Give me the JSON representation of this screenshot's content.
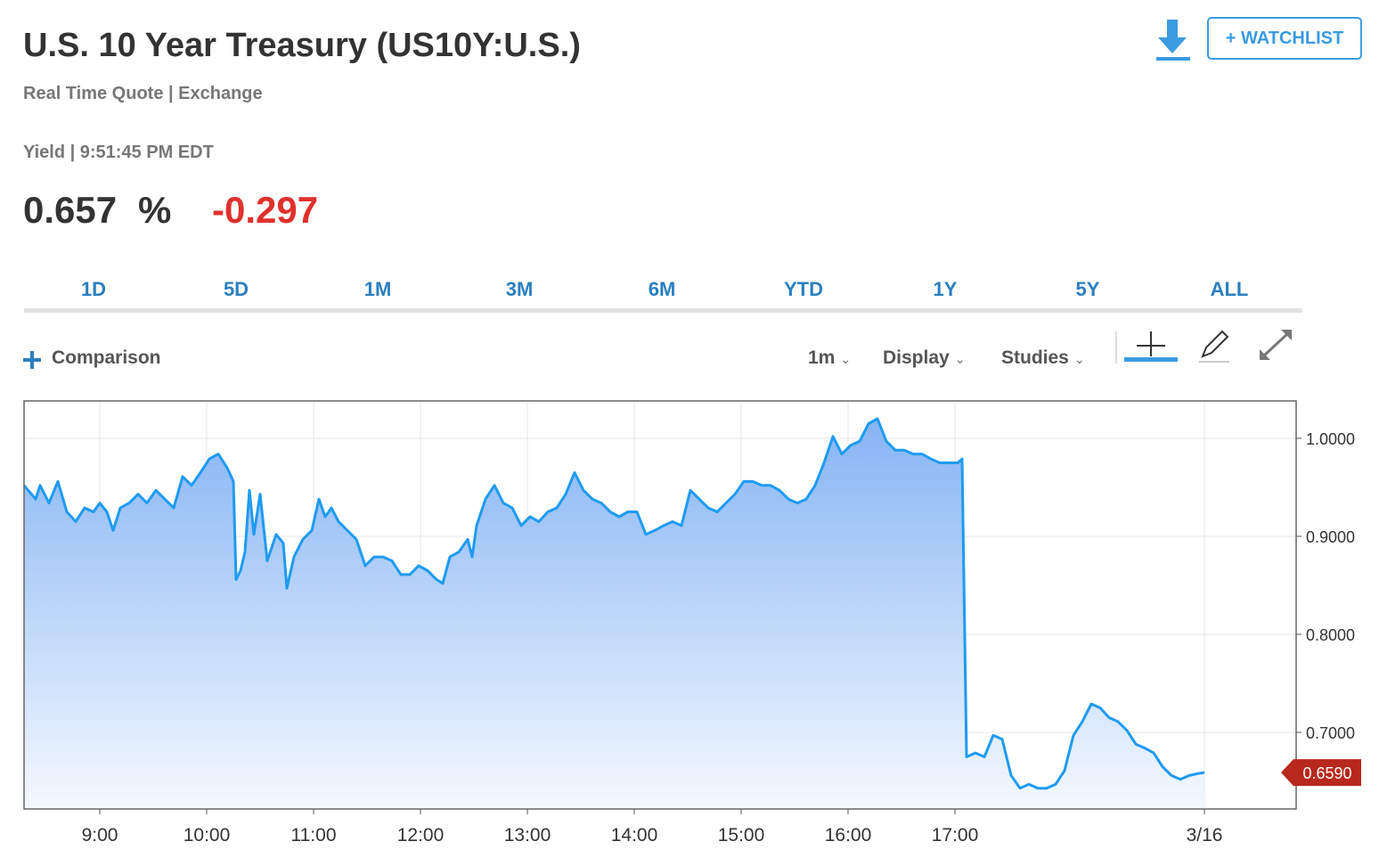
{
  "header": {
    "title": "U.S. 10 Year Treasury (US10Y:U.S.)",
    "subtitle": "Real Time Quote | Exchange",
    "watchlist": "+ WATCHLIST"
  },
  "quote": {
    "meta": "Yield | 9:51:45 PM EDT",
    "price": "0.657",
    "unit": "%",
    "change": "-0.297"
  },
  "tabs": [
    "1D",
    "5D",
    "1M",
    "3M",
    "6M",
    "YTD",
    "1Y",
    "5Y",
    "ALL"
  ],
  "toolbar": {
    "comparison": "Comparison",
    "interval": "1m",
    "display": "Display",
    "studies": "Studies"
  },
  "chart_data": {
    "type": "area",
    "color": "#1e9bf0",
    "x": [
      497.5,
      504,
      506.5,
      511.5,
      516.5,
      521.5,
      526.5,
      531.5,
      536.5,
      540,
      544,
      547.5,
      551.5,
      556.5,
      561.5,
      566.5,
      571.5,
      576.5,
      581.5,
      586.5,
      591.5,
      596.5,
      601.5,
      606.5,
      611.5,
      615,
      616.5,
      619,
      621.5,
      624,
      626.5,
      630,
      634,
      639,
      643,
      645,
      649,
      654,
      659,
      663,
      666.5,
      670,
      674,
      679,
      684,
      689,
      694,
      699,
      704,
      709,
      714,
      719,
      724,
      729,
      732.5,
      736.5,
      741.5,
      746.5,
      749,
      751.5,
      756.5,
      761.5,
      766.5,
      771.5,
      776.5,
      781.5,
      786.5,
      791.5,
      796.5,
      801.5,
      806.5,
      811.5,
      816.5,
      821.5,
      826.5,
      831.5,
      836.5,
      841.5,
      846.5,
      851.5,
      856.5,
      861.5,
      866.5,
      871.5,
      876.5,
      881.5,
      886.5,
      891.5,
      896.5,
      901.5,
      906.5,
      911.5,
      916.5,
      921.5,
      926.5,
      931.5,
      936.5,
      941.5,
      946.5,
      951.5,
      956.5,
      961.5,
      966.5,
      971.5,
      976.5,
      981.5,
      986.5,
      991.5,
      996.5,
      1001.5,
      1006.5,
      1011.5,
      1016.5,
      1021.5,
      1024,
      1026.5,
      1031.5,
      1036.5,
      1041.5,
      1046.5,
      1051.5,
      1056.5,
      1061.5,
      1066.5,
      1071.5,
      1076.5,
      1081.5,
      1086.5,
      1091.5,
      1096.5,
      1101.5,
      1106.5,
      1111.5,
      1116.5,
      1121.5,
      1126.5,
      1131.5,
      1136.5,
      1141.5,
      1146.5,
      1151.5,
      1156.5,
      1160
    ],
    "values": [
      0.952,
      0.938,
      0.952,
      0.934,
      0.956,
      0.925,
      0.915,
      0.929,
      0.925,
      0.934,
      0.925,
      0.906,
      0.929,
      0.934,
      0.943,
      0.934,
      0.947,
      0.938,
      0.929,
      0.961,
      0.952,
      0.965,
      0.979,
      0.984,
      0.97,
      0.956,
      0.856,
      0.865,
      0.884,
      0.947,
      0.902,
      0.943,
      0.875,
      0.902,
      0.893,
      0.847,
      0.879,
      0.897,
      0.906,
      0.938,
      0.92,
      0.929,
      0.915,
      0.906,
      0.897,
      0.87,
      0.879,
      0.879,
      0.875,
      0.861,
      0.861,
      0.87,
      0.865,
      0.856,
      0.852,
      0.879,
      0.884,
      0.897,
      0.879,
      0.911,
      0.938,
      0.952,
      0.934,
      0.929,
      0.911,
      0.92,
      0.915,
      0.925,
      0.929,
      0.943,
      0.965,
      0.947,
      0.938,
      0.934,
      0.925,
      0.92,
      0.925,
      0.925,
      0.902,
      0.906,
      0.911,
      0.915,
      0.911,
      0.947,
      0.938,
      0.929,
      0.925,
      0.934,
      0.943,
      0.956,
      0.956,
      0.952,
      0.952,
      0.947,
      0.938,
      0.934,
      0.938,
      0.952,
      0.975,
      1.002,
      0.984,
      0.993,
      0.997,
      1.015,
      1.02,
      0.997,
      0.988,
      0.988,
      0.984,
      0.984,
      0.979,
      0.975,
      0.975,
      0.975,
      0.979,
      0.675,
      0.679,
      0.675,
      0.697,
      0.693,
      0.656,
      0.643,
      0.647,
      0.643,
      0.643,
      0.647,
      0.661,
      0.697,
      0.711,
      0.729,
      0.725,
      0.715,
      0.711,
      0.702,
      0.688,
      0.684,
      0.679,
      0.665,
      0.656,
      0.652,
      0.656,
      0.658,
      0.659
    ],
    "xlim": [
      497.5,
      1211.5
    ],
    "xticks": [
      {
        "value": 540,
        "label": "9:00"
      },
      {
        "value": 600,
        "label": "10:00"
      },
      {
        "value": 660,
        "label": "11:00"
      },
      {
        "value": 720,
        "label": "12:00"
      },
      {
        "value": 780,
        "label": "13:00"
      },
      {
        "value": 840,
        "label": "14:00"
      },
      {
        "value": 900,
        "label": "15:00"
      },
      {
        "value": 960,
        "label": "16:00"
      },
      {
        "value": 1020,
        "label": "17:00"
      },
      {
        "value": 1160,
        "label": "3/16"
      }
    ],
    "ylim": [
      0.6218,
      1.0382
    ],
    "yticks": [
      {
        "value": 0.7,
        "label": "0.7000"
      },
      {
        "value": 0.8,
        "label": "0.8000"
      },
      {
        "value": 0.9,
        "label": "0.9000"
      },
      {
        "value": 1.0,
        "label": "1.0000"
      }
    ],
    "grid": true,
    "last_price": {
      "value": 0.659,
      "label": "0.6590"
    }
  }
}
